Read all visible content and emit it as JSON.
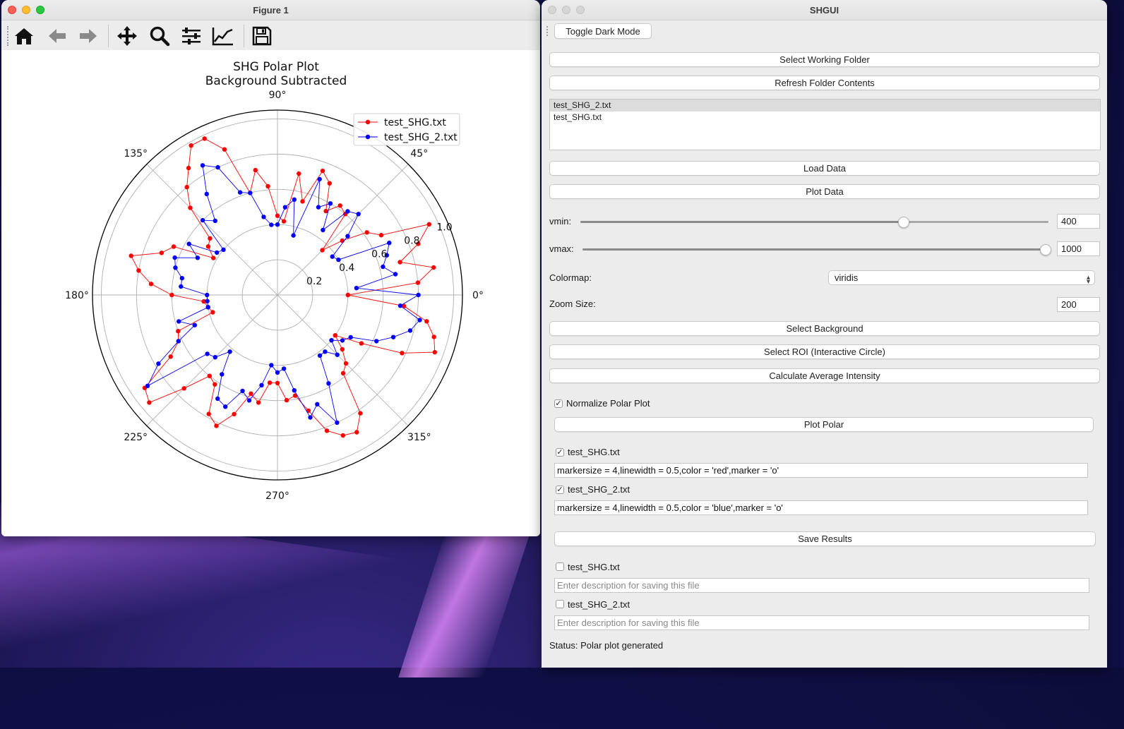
{
  "figure_window": {
    "title": "Figure 1",
    "toolbar": [
      "home-icon",
      "back-arrow-icon",
      "forward-arrow-icon",
      "pan-icon",
      "zoom-icon",
      "configure-subplots-icon",
      "edit-axis-icon",
      "save-icon"
    ]
  },
  "chart_data": {
    "type": "polar-line",
    "title": "SHG Polar Plot",
    "subtitle": "Background Subtracted",
    "theta_tick_labels": [
      "0°",
      "45°",
      "90°",
      "135°",
      "180°",
      "225°",
      "270°",
      "315°"
    ],
    "r_tick_labels": [
      "0.2",
      "0.4",
      "0.6",
      "0.8",
      "1.0"
    ],
    "r_ticks": [
      0.2,
      0.4,
      0.6,
      0.8,
      1.0
    ],
    "rlim": [
      0,
      1.05
    ],
    "legend_position": "upper-right",
    "series": [
      {
        "name": "test_SHG.txt",
        "color": "#ff0000",
        "marker": "o",
        "theta_deg": [
          0,
          5,
          10,
          15,
          20,
          25,
          30,
          35,
          40,
          45,
          50,
          55,
          60,
          65,
          70,
          75,
          80,
          85,
          90,
          95,
          100,
          105,
          110,
          115,
          120,
          125,
          130,
          135,
          140,
          145,
          150,
          155,
          160,
          165,
          170,
          175,
          180,
          185,
          190,
          195,
          200,
          205,
          210,
          215,
          220,
          225,
          230,
          235,
          240,
          245,
          250,
          255,
          260,
          265,
          270,
          275,
          280,
          285,
          290,
          295,
          300,
          305,
          310,
          315,
          320,
          325,
          330,
          335,
          340,
          345,
          350,
          355
        ],
        "r": [
          0.4,
          0.8,
          0.9,
          0.72,
          0.85,
          0.95,
          0.68,
          0.62,
          0.48,
          0.36,
          0.6,
          0.62,
          0.55,
          0.7,
          0.75,
          0.55,
          0.7,
          0.42,
          0.45,
          0.62,
          0.72,
          0.6,
          0.88,
          0.98,
          0.98,
          0.88,
          0.8,
          0.7,
          0.5,
          0.48,
          0.42,
          0.65,
          0.7,
          0.86,
          0.8,
          0.72,
          0.6,
          0.42,
          0.4,
          0.38,
          0.6,
          0.62,
          0.7,
          0.92,
          0.95,
          0.75,
          0.6,
          0.62,
          0.78,
          0.82,
          0.72,
          0.58,
          0.62,
          0.5,
          0.5,
          0.6,
          0.58,
          0.68,
          0.82,
          0.88,
          0.9,
          0.82,
          0.58,
          0.55,
          0.48,
          0.4,
          0.55,
          0.78,
          0.95,
          0.92,
          0.86,
          0.72
        ]
      },
      {
        "name": "test_SHG_2.txt",
        "color": "#0000ff",
        "marker": "o",
        "theta_deg": [
          0,
          5,
          10,
          15,
          20,
          25,
          30,
          35,
          40,
          45,
          50,
          55,
          60,
          65,
          70,
          75,
          80,
          85,
          90,
          95,
          100,
          105,
          110,
          115,
          120,
          125,
          130,
          135,
          140,
          145,
          150,
          155,
          160,
          165,
          170,
          175,
          180,
          185,
          190,
          195,
          200,
          205,
          210,
          215,
          220,
          225,
          230,
          235,
          240,
          245,
          250,
          255,
          260,
          265,
          270,
          275,
          280,
          285,
          290,
          295,
          300,
          305,
          310,
          315,
          320,
          325,
          330,
          335,
          340,
          345,
          350,
          355
        ],
        "r": [
          0.8,
          0.45,
          0.68,
          0.62,
          0.66,
          0.7,
          0.4,
          0.38,
          0.52,
          0.65,
          0.62,
          0.45,
          0.6,
          0.55,
          0.7,
          0.35,
          0.55,
          0.5,
          0.4,
          0.4,
          0.45,
          0.6,
          0.62,
          0.8,
          0.85,
          0.7,
          0.55,
          0.6,
          0.4,
          0.42,
          0.58,
          0.5,
          0.62,
          0.6,
          0.55,
          0.55,
          0.4,
          0.4,
          0.4,
          0.58,
          0.5,
          0.62,
          0.78,
          0.9,
          0.52,
          0.5,
          0.42,
          0.55,
          0.68,
          0.7,
          0.58,
          0.62,
          0.52,
          0.4,
          0.44,
          0.42,
          0.55,
          0.72,
          0.66,
          0.8,
          0.58,
          0.42,
          0.42,
          0.48,
          0.4,
          0.45,
          0.48,
          0.62,
          0.7,
          0.78,
          0.82,
          0.7
        ]
      }
    ]
  },
  "gui": {
    "title": "SHGUI",
    "toggle_dark_mode": "Toggle Dark Mode",
    "select_folder": "Select Working Folder",
    "refresh_folder": "Refresh Folder Contents",
    "files": [
      "test_SHG_2.txt",
      "test_SHG.txt"
    ],
    "load_data": "Load Data",
    "plot_data": "Plot Data",
    "vmin_label": "vmin:",
    "vmin_value": "400",
    "vmin_fraction": 0.69,
    "vmax_label": "vmax:",
    "vmax_value": "1000",
    "vmax_fraction": 1.0,
    "colormap_label": "Colormap:",
    "colormap_value": "viridis",
    "zoom_label": "Zoom Size:",
    "zoom_value": "200",
    "select_background": "Select Background",
    "select_roi": "Select ROI (Interactive Circle)",
    "calc_intensity": "Calculate Average Intensity",
    "normalize_label": "Normalize Polar Plot",
    "normalize_checked": true,
    "plot_polar": "Plot Polar",
    "plot_file1": "test_SHG.txt",
    "plot_file1_checked": true,
    "plot_file1_style": "markersize = 4,linewidth = 0.5,color = 'red',marker = 'o'",
    "plot_file2": "test_SHG_2.txt",
    "plot_file2_checked": true,
    "plot_file2_style": "markersize = 4,linewidth = 0.5,color = 'blue',marker = 'o'",
    "save_results": "Save Results",
    "save_file1": "test_SHG.txt",
    "save_file1_placeholder": "Enter description for saving this file",
    "save_file2": "test_SHG_2.txt",
    "save_file2_placeholder": "Enter description for saving this file",
    "status": "Status: Polar plot generated"
  }
}
